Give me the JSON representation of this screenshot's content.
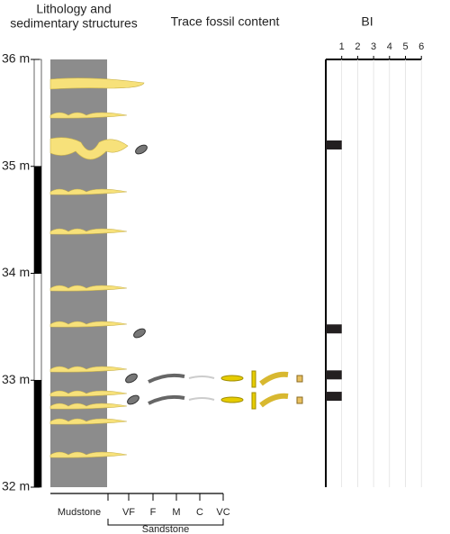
{
  "chart_data": {
    "type": "strip-log",
    "title_lines": [
      "Lithology and",
      "sedimentary structures"
    ],
    "trace_title": "Trace fossil content",
    "bi_title": "BI",
    "ylim": [
      32,
      36
    ],
    "yticks": [
      {
        "value": 32,
        "label": "32 m"
      },
      {
        "value": 33,
        "label": "33 m"
      },
      {
        "value": 34,
        "label": "34 m"
      },
      {
        "value": 35,
        "label": "35 m"
      },
      {
        "value": 36,
        "label": "36 m"
      }
    ],
    "grain_sizes": [
      "Mudstone",
      "VF",
      "F",
      "M",
      "C",
      "VC"
    ],
    "grain_group": "Sandstone",
    "xlim": [
      0,
      6
    ],
    "xticks": [
      1,
      2,
      3,
      4,
      5,
      6
    ],
    "series": [
      {
        "name": "BI",
        "color": "#231f20",
        "depths": [
          35.2,
          33.48,
          33.05,
          32.85
        ],
        "values": [
          1,
          1,
          1,
          1
        ]
      }
    ]
  }
}
